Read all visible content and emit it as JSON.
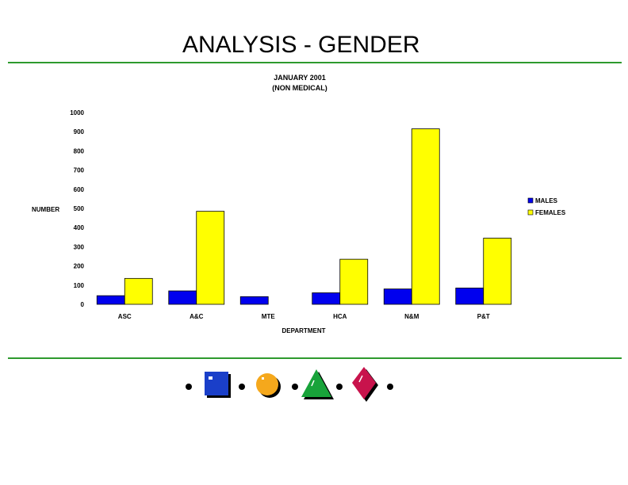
{
  "slide": {
    "title": "ANALYSIS - GENDER"
  },
  "chart_data": {
    "type": "bar",
    "title": "JANUARY 2001",
    "subtitle": "(NON MEDICAL)",
    "xlabel": "DEPARTMENT",
    "ylabel": "NUMBER",
    "ylim": [
      0,
      1000
    ],
    "yticks": [
      0,
      100,
      200,
      300,
      400,
      500,
      600,
      700,
      800,
      900,
      1000
    ],
    "categories": [
      "ASC",
      "A&C",
      "MTE",
      "HCA",
      "N&M",
      "P&T"
    ],
    "series": [
      {
        "name": "MALES",
        "color": "#0000ee",
        "values": [
          45,
          70,
          40,
          60,
          80,
          85
        ]
      },
      {
        "name": "FEMALES",
        "color": "#ffff00",
        "values": [
          135,
          485,
          0,
          235,
          915,
          345
        ]
      }
    ],
    "legend_position": "right",
    "grid": false
  },
  "colors": {
    "rule": "#2e9a2e",
    "male_bar": "#0000ee",
    "female_bar": "#ffff00"
  },
  "footer": {
    "icons": [
      "bullet-dot",
      "blue-square",
      "bullet-dot",
      "orange-circle",
      "bullet-dot",
      "green-triangle",
      "bullet-dot",
      "red-diamond",
      "bullet-dot"
    ]
  }
}
